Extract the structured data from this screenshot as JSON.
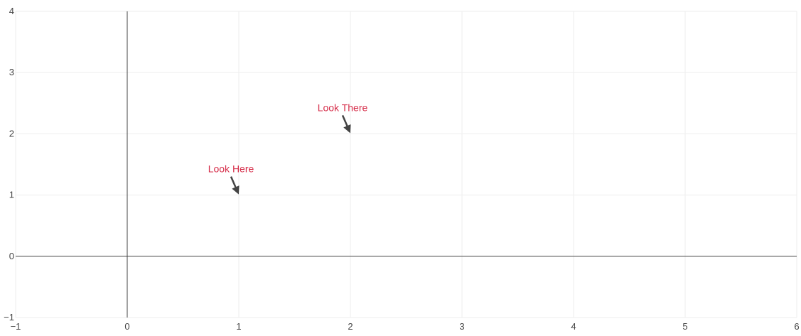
{
  "chart_data": {
    "type": "scatter",
    "title": "",
    "xlabel": "",
    "ylabel": "",
    "xlim": [
      -1,
      6
    ],
    "ylim": [
      -1,
      4
    ],
    "x_ticks": [
      -1,
      0,
      1,
      2,
      3,
      4,
      5,
      6
    ],
    "x_tick_labels": [
      "−1",
      "0",
      "1",
      "2",
      "3",
      "4",
      "5",
      "6"
    ],
    "y_ticks": [
      -1,
      0,
      1,
      2,
      3,
      4
    ],
    "y_tick_labels": [
      "−1",
      "0",
      "1",
      "2",
      "3",
      "4"
    ],
    "grid": true,
    "zero_lines": true,
    "series": [],
    "annotations": [
      {
        "x": 1,
        "y": 1,
        "text": "Look Here"
      },
      {
        "x": 2,
        "y": 2,
        "text": "Look There"
      }
    ],
    "colors": {
      "annotation_text": "#d62f4b",
      "arrow": "#444444",
      "grid": "#eeeeee",
      "zero_line": "#444444",
      "tick_text": "#444444"
    }
  }
}
